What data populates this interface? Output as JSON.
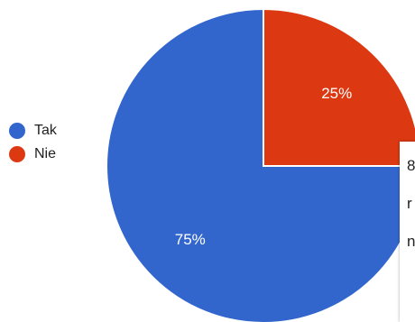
{
  "chart_data": {
    "type": "pie",
    "categories": [
      "Tak",
      "Nie"
    ],
    "values": [
      75,
      25
    ],
    "data_labels": [
      "75%",
      "25%"
    ],
    "colors": [
      "#3366cc",
      "#dc3912"
    ],
    "start_angle_deg": 0,
    "direction": "clockwise",
    "legend_position": "left"
  },
  "legend": {
    "items": [
      {
        "label": "Tak",
        "color": "#3366cc"
      },
      {
        "label": "Nie",
        "color": "#dc3912"
      }
    ]
  },
  "tooltip": {
    "lines": [
      "8",
      "r",
      "n"
    ]
  }
}
